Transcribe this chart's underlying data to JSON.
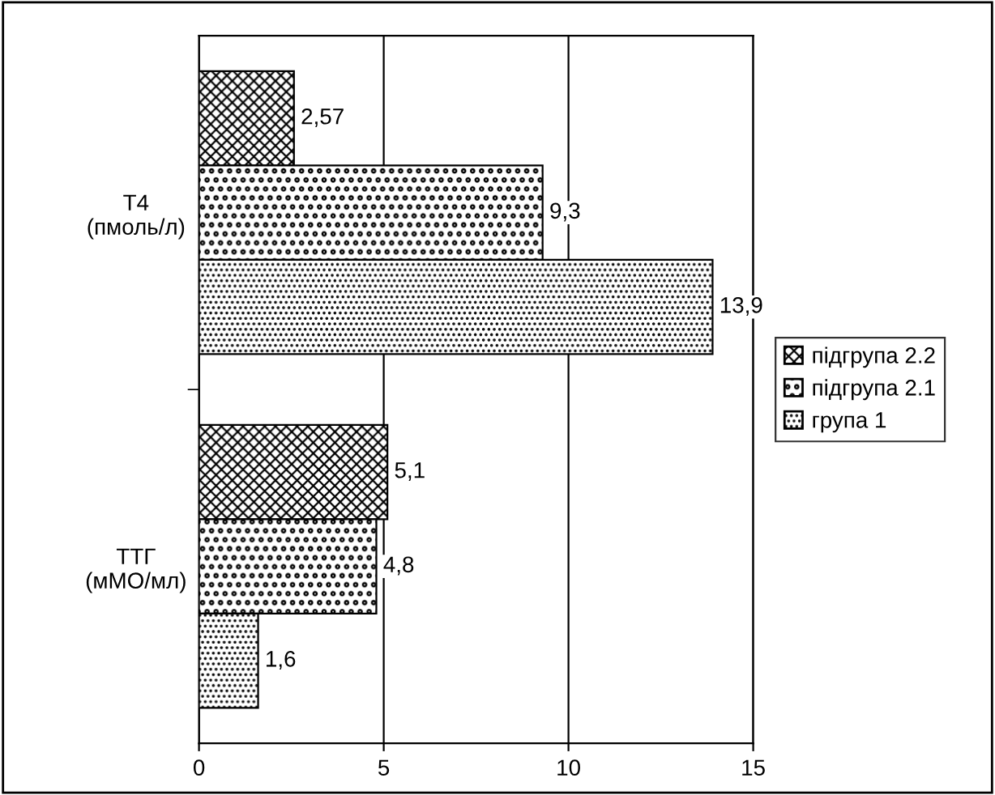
{
  "chart_data": {
    "type": "bar",
    "orientation": "horizontal",
    "categories": [
      "Т4\n(пмоль/л)",
      "ТТГ\n(мМО/мл)"
    ],
    "series": [
      {
        "name": "підгрупа 2.2",
        "color": "#000000",
        "values": [
          2.57,
          5.1
        ],
        "value_labels": [
          "2,57",
          "5,1"
        ]
      },
      {
        "name": "підгрупа 2.1",
        "color": "#000000",
        "values": [
          9.3,
          4.8
        ],
        "value_labels": [
          "9,3",
          "4,8"
        ]
      },
      {
        "name": "група 1",
        "color": "#000000",
        "values": [
          13.9,
          1.6
        ],
        "value_labels": [
          "13,9",
          "1,6"
        ]
      }
    ],
    "xlim": [
      0,
      15
    ],
    "xticks": [
      0,
      5,
      10,
      15
    ],
    "grid": "x",
    "legend": "right"
  }
}
